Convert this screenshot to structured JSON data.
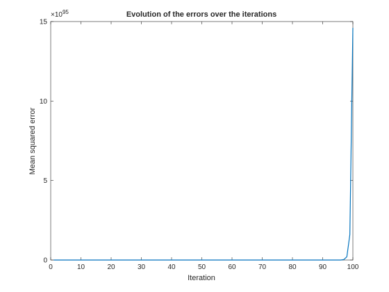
{
  "chart_data": {
    "type": "line",
    "title": "Evolution of the errors over the iterations",
    "xlabel": "Iteration",
    "ylabel": "Mean squared error",
    "y_exponent": "×10",
    "y_exponent_power": "95",
    "xlim": [
      0,
      100
    ],
    "ylim": [
      0,
      15
    ],
    "x_ticks": [
      "0",
      "10",
      "20",
      "30",
      "40",
      "50",
      "60",
      "70",
      "80",
      "90",
      "100"
    ],
    "y_ticks": [
      "0",
      "5",
      "10",
      "15"
    ],
    "grid": false,
    "series": [
      {
        "color": "#0072bd",
        "x": [
          1,
          10,
          20,
          30,
          40,
          50,
          60,
          70,
          80,
          90,
          95,
          96,
          97,
          98,
          99,
          100
        ],
        "y": [
          0,
          0,
          0,
          0,
          0,
          0,
          0,
          0,
          0,
          0,
          0,
          0.0,
          0.03,
          0.2,
          1.6,
          14.6
        ]
      }
    ]
  }
}
